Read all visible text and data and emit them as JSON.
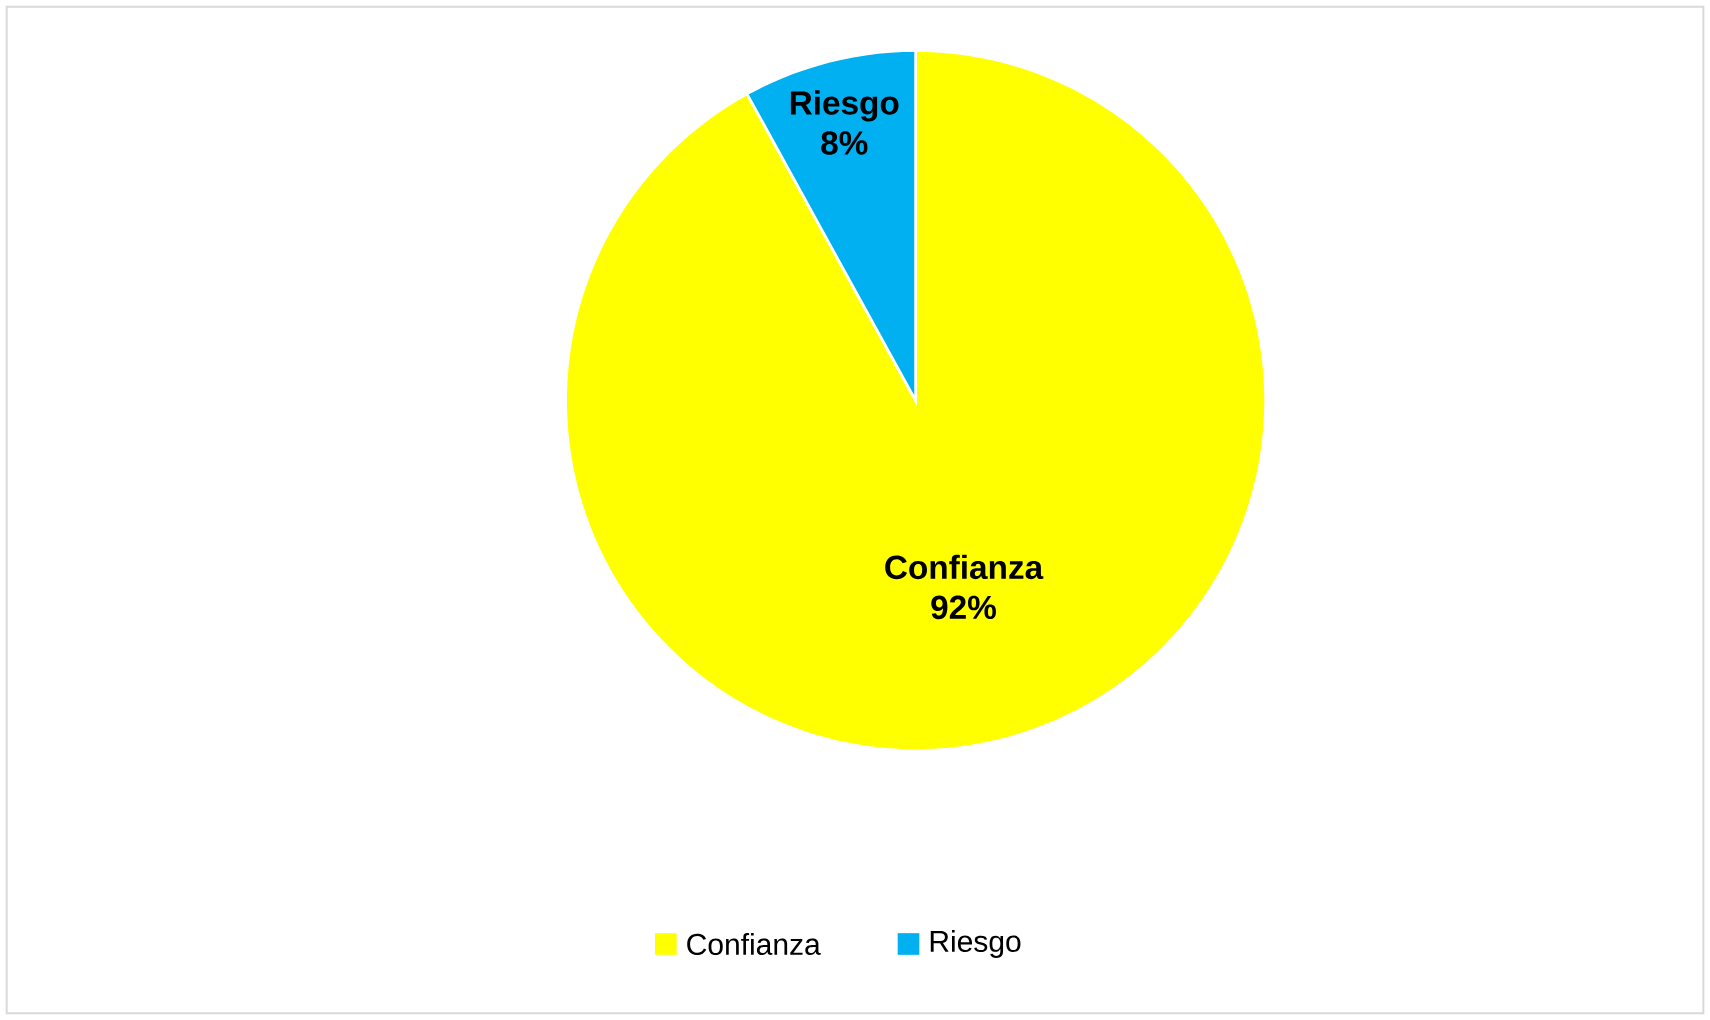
{
  "chart_data": {
    "type": "pie",
    "categories": [
      "Confianza",
      "Riesgo"
    ],
    "values": [
      92,
      8
    ],
    "colors": [
      "#ffff00",
      "#00b0f0"
    ],
    "value_labels": [
      "92%",
      "8%"
    ],
    "legend": "bottom"
  }
}
